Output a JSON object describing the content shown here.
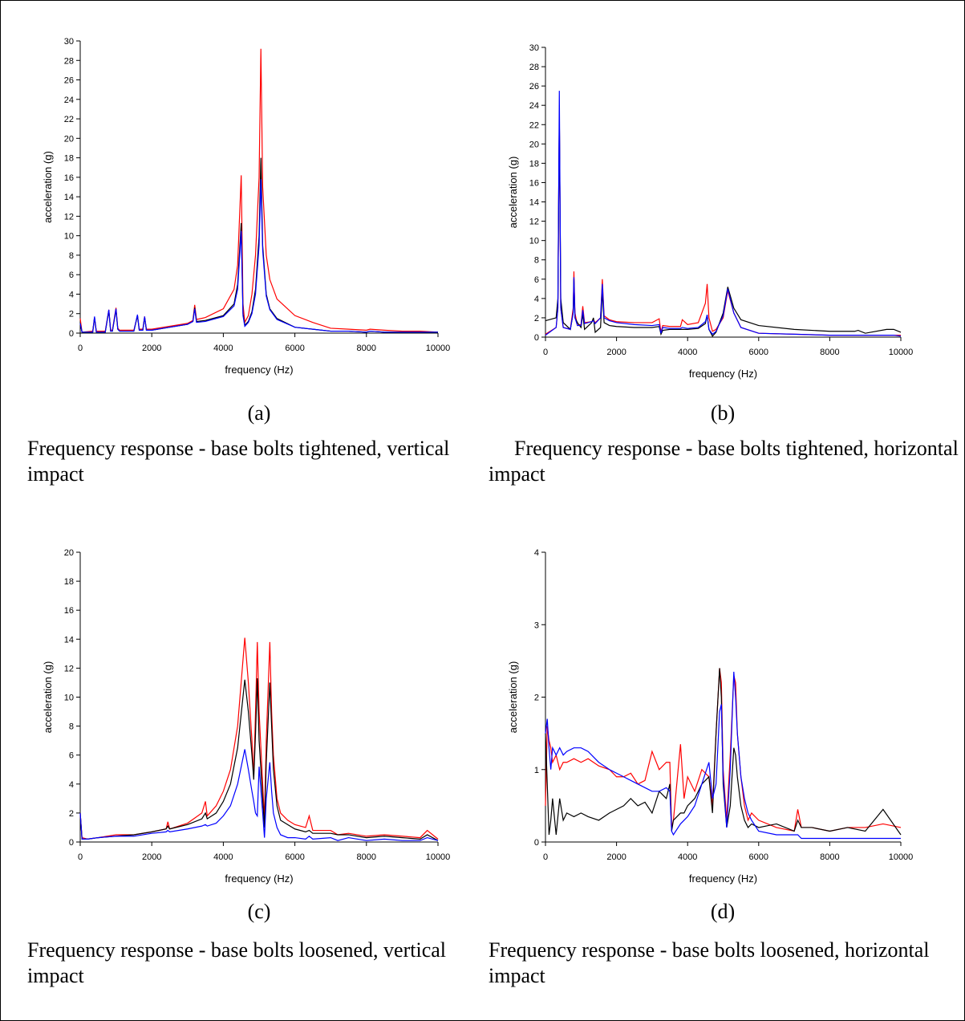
{
  "chart_data": [
    {
      "type": "line",
      "label": "(a)",
      "caption": "Frequency response - base bolts tightened, vertical impact",
      "xlabel": "frequency (Hz)",
      "ylabel": "acceleration (g)",
      "xlim": [
        0,
        10000
      ],
      "xticks": [
        0,
        2000,
        4000,
        6000,
        8000,
        10000
      ],
      "ylim": [
        0,
        30
      ],
      "yticks": [
        0,
        2,
        4,
        6,
        8,
        10,
        12,
        14,
        16,
        18,
        20,
        22,
        24,
        26,
        28,
        30
      ],
      "x": [
        0,
        50,
        350,
        400,
        450,
        700,
        800,
        850,
        900,
        1000,
        1050,
        1100,
        1500,
        1600,
        1650,
        1750,
        1800,
        1850,
        2000,
        2500,
        3000,
        3150,
        3200,
        3250,
        3500,
        4000,
        4300,
        4400,
        4500,
        4550,
        4600,
        4700,
        4800,
        4900,
        5000,
        5050,
        5100,
        5200,
        5300,
        5500,
        6000,
        6500,
        7000,
        7500,
        8000,
        8100,
        8500,
        9000,
        9500,
        10000
      ],
      "series": [
        {
          "color": "#ff0000",
          "values": [
            1.5,
            0.1,
            0.2,
            1.6,
            0.2,
            0.2,
            2.4,
            0.3,
            0.3,
            2.6,
            0.5,
            0.3,
            0.3,
            1.8,
            0.4,
            0.4,
            1.7,
            0.4,
            0.4,
            0.7,
            1.0,
            1.3,
            2.9,
            1.4,
            1.6,
            2.5,
            4.5,
            7,
            16.2,
            3,
            1.1,
            1.8,
            4,
            8,
            16,
            29.2,
            15,
            8,
            5.5,
            3.5,
            1.8,
            1.1,
            0.5,
            0.4,
            0.3,
            0.4,
            0.3,
            0.2,
            0.2,
            0.1
          ]
        },
        {
          "color": "#000000",
          "values": [
            1.0,
            0.1,
            0.1,
            1.6,
            0.1,
            0.1,
            2.3,
            0.2,
            0.2,
            2.4,
            0.4,
            0.2,
            0.2,
            1.8,
            0.3,
            0.3,
            1.6,
            0.3,
            0.3,
            0.6,
            0.9,
            1.2,
            2.6,
            1.2,
            1.3,
            1.8,
            3,
            5,
            11.3,
            2,
            0.8,
            1.2,
            2.2,
            4.5,
            10,
            18,
            9,
            4,
            2.5,
            1.5,
            0.6,
            0.4,
            0.2,
            0.2,
            0.1,
            0.2,
            0.1,
            0.1,
            0.1,
            0.1
          ]
        },
        {
          "color": "#0000ff",
          "values": [
            1.0,
            0.1,
            0.1,
            1.7,
            0.1,
            0.1,
            2.4,
            0.2,
            0.2,
            2.5,
            0.4,
            0.2,
            0.2,
            1.9,
            0.3,
            0.3,
            1.7,
            0.3,
            0.3,
            0.6,
            0.9,
            1.2,
            2.5,
            1.1,
            1.2,
            1.7,
            2.8,
            4.5,
            10.5,
            1.8,
            0.7,
            1.1,
            2,
            4,
            9,
            15.8,
            8.5,
            3.8,
            2.4,
            1.4,
            0.6,
            0.4,
            0.2,
            0.2,
            0.1,
            0.2,
            0.1,
            0.1,
            0.1,
            0.1
          ]
        }
      ]
    },
    {
      "type": "line",
      "label": "(b)",
      "caption": "Frequency response - base bolts tightened, horizontal impact",
      "xlabel": "frequency (Hz)",
      "ylabel": "acceleration (g)",
      "xlim": [
        0,
        10000
      ],
      "xticks": [
        0,
        2000,
        4000,
        6000,
        8000,
        10000
      ],
      "ylim": [
        0,
        30
      ],
      "yticks": [
        0,
        2,
        4,
        6,
        8,
        10,
        12,
        14,
        16,
        18,
        20,
        22,
        24,
        26,
        28,
        30
      ],
      "x": [
        0,
        300,
        350,
        390,
        430,
        500,
        700,
        780,
        800,
        830,
        900,
        1000,
        1050,
        1100,
        1300,
        1350,
        1400,
        1550,
        1600,
        1650,
        1800,
        2000,
        2500,
        3000,
        3200,
        3250,
        3300,
        3500,
        3800,
        3850,
        4000,
        4300,
        4500,
        4550,
        4600,
        4700,
        4800,
        5000,
        5130,
        5300,
        5500,
        6000,
        7000,
        8000,
        8700,
        8800,
        9000,
        9600,
        9800,
        10000
      ],
      "series": [
        {
          "color": "#ff0000",
          "values": [
            0.3,
            1,
            3,
            23,
            3,
            1,
            0.8,
            3,
            6.8,
            2.5,
            1.2,
            1.3,
            3.2,
            1.5,
            1.6,
            1.8,
            1.5,
            2,
            6,
            2.2,
            1.8,
            1.6,
            1.5,
            1.5,
            1.9,
            0.5,
            1.2,
            1.1,
            1.1,
            1.8,
            1.3,
            1.5,
            3.5,
            5.5,
            2,
            0.6,
            0.8,
            2,
            4.8,
            2.5,
            1,
            0.4,
            0.3,
            0.2,
            0.2,
            0.2,
            0.2,
            0.2,
            0.2,
            0.2
          ]
        },
        {
          "color": "#000000",
          "values": [
            1.7,
            2,
            4,
            23,
            4,
            1.5,
            0.8,
            2.5,
            6,
            2,
            1.5,
            1,
            2.4,
            0.8,
            1.5,
            2,
            0.5,
            1,
            4.8,
            1.5,
            1.2,
            1.1,
            1,
            1,
            1.1,
            0.3,
            0.7,
            0.8,
            0.8,
            0.8,
            0.8,
            0.9,
            1.4,
            2.3,
            0.8,
            0.1,
            0.5,
            2.5,
            5.2,
            3,
            1.8,
            1.2,
            0.8,
            0.6,
            0.6,
            0.7,
            0.4,
            0.8,
            0.8,
            0.5
          ]
        },
        {
          "color": "#0000ff",
          "values": [
            0.2,
            1,
            3,
            25.5,
            3,
            1,
            0.8,
            2.5,
            6.2,
            2,
            1.2,
            1.2,
            2.8,
            1.4,
            1.6,
            1.7,
            1.4,
            2,
            5.5,
            2,
            1.7,
            1.5,
            1.3,
            1.2,
            1.3,
            0.4,
            1,
            0.9,
            0.9,
            1,
            0.9,
            1,
            1.6,
            2.3,
            0.8,
            0.3,
            0.6,
            2.2,
            5,
            2.5,
            1,
            0.4,
            0.3,
            0.2,
            0.2,
            0.2,
            0.2,
            0.2,
            0.2,
            0.1
          ]
        }
      ]
    },
    {
      "type": "line",
      "label": "(c)",
      "caption": "Frequency response - base bolts loosened, vertical impact",
      "xlabel": "frequency (Hz)",
      "ylabel": "acceleration (g)",
      "xlim": [
        0,
        10000
      ],
      "xticks": [
        0,
        2000,
        4000,
        6000,
        8000,
        10000
      ],
      "ylim": [
        0,
        20
      ],
      "yticks": [
        0,
        2,
        4,
        6,
        8,
        10,
        12,
        14,
        16,
        18,
        20
      ],
      "x": [
        0,
        50,
        200,
        500,
        1000,
        1500,
        2000,
        2400,
        2450,
        2500,
        3000,
        3400,
        3500,
        3550,
        3800,
        4000,
        4200,
        4400,
        4600,
        4700,
        4800,
        4850,
        4900,
        4950,
        5000,
        5100,
        5150,
        5200,
        5300,
        5350,
        5400,
        5500,
        5600,
        5800,
        6000,
        6300,
        6400,
        6500,
        7000,
        7200,
        7500,
        8000,
        8500,
        9000,
        9500,
        9700,
        10000
      ],
      "series": [
        {
          "color": "#ff0000",
          "values": [
            2,
            0.3,
            0.2,
            0.3,
            0.5,
            0.5,
            0.7,
            0.9,
            1.4,
            0.9,
            1.3,
            2,
            2.8,
            1.8,
            2.5,
            3.5,
            5,
            8,
            14.1,
            11,
            7,
            4.5,
            9,
            13.8,
            9,
            4,
            1.5,
            7,
            13.8,
            9,
            6,
            3,
            2,
            1.5,
            1.2,
            1,
            1.8,
            0.8,
            0.8,
            0.5,
            0.6,
            0.4,
            0.5,
            0.4,
            0.3,
            0.8,
            0.2
          ]
        },
        {
          "color": "#000000",
          "values": [
            2,
            0.2,
            0.2,
            0.3,
            0.4,
            0.5,
            0.7,
            0.9,
            1.1,
            0.9,
            1.2,
            1.6,
            2.0,
            1.6,
            2,
            2.8,
            4,
            6.5,
            11.2,
            9,
            6,
            4.3,
            7.5,
            11.3,
            7,
            3,
            1,
            5.5,
            11,
            8,
            5,
            2.5,
            1.5,
            1.2,
            0.9,
            0.7,
            0.8,
            0.6,
            0.6,
            0.5,
            0.5,
            0.3,
            0.4,
            0.3,
            0.2,
            0.5,
            0.1
          ]
        },
        {
          "color": "#0000ff",
          "values": [
            2,
            0.2,
            0.2,
            0.3,
            0.4,
            0.4,
            0.6,
            0.7,
            0.8,
            0.7,
            0.9,
            1.1,
            1.2,
            1.1,
            1.3,
            1.8,
            2.5,
            4,
            6.4,
            5,
            3.5,
            2.8,
            2,
            1.8,
            5.2,
            2,
            0.3,
            3,
            5.5,
            3.5,
            2,
            1,
            0.5,
            0.3,
            0.3,
            0.2,
            0.4,
            0.2,
            0.3,
            0.1,
            0.3,
            0.1,
            0.2,
            0.1,
            0.1,
            0.3,
            0.1
          ]
        }
      ]
    },
    {
      "type": "line",
      "label": "(d)",
      "caption": "Frequency response - base bolts loosened, horizontal impact",
      "xlabel": "frequency (Hz)",
      "ylabel": "acceleration (g)",
      "xlim": [
        0,
        10000
      ],
      "xticks": [
        0,
        2000,
        4000,
        6000,
        8000,
        10000
      ],
      "ylim": [
        0,
        4
      ],
      "yticks": [
        0,
        1,
        2,
        3,
        4
      ],
      "x": [
        0,
        50,
        100,
        150,
        200,
        300,
        400,
        500,
        600,
        800,
        1000,
        1200,
        1500,
        1800,
        2000,
        2200,
        2400,
        2600,
        2800,
        3000,
        3200,
        3400,
        3500,
        3550,
        3600,
        3800,
        3900,
        4000,
        4200,
        4400,
        4600,
        4700,
        4800,
        4900,
        4950,
        5000,
        5100,
        5200,
        5300,
        5350,
        5400,
        5500,
        5600,
        5700,
        5800,
        6000,
        6500,
        7000,
        7100,
        7200,
        7500,
        8000,
        8500,
        9000,
        9500,
        10000
      ],
      "series": [
        {
          "color": "#ff0000",
          "values": [
            0.5,
            1.6,
            1.4,
            1.3,
            1.1,
            1.2,
            1.0,
            1.1,
            1.1,
            1.15,
            1.1,
            1.15,
            1.05,
            1.0,
            0.9,
            0.9,
            0.95,
            0.8,
            0.85,
            1.25,
            1.0,
            1.1,
            1.1,
            0.2,
            0.3,
            1.35,
            0.6,
            0.9,
            0.7,
            1.0,
            0.9,
            0.5,
            1.5,
            2.4,
            2.2,
            1.0,
            0.3,
            1.2,
            2.3,
            2.2,
            1.5,
            0.9,
            0.5,
            0.3,
            0.4,
            0.3,
            0.2,
            0.15,
            0.45,
            0.2,
            0.2,
            0.15,
            0.2,
            0.2,
            0.25,
            0.2
          ]
        },
        {
          "color": "#000000",
          "values": [
            1.5,
            0.8,
            0.1,
            0.3,
            0.6,
            0.1,
            0.6,
            0.3,
            0.4,
            0.35,
            0.4,
            0.35,
            0.3,
            0.4,
            0.45,
            0.5,
            0.6,
            0.5,
            0.55,
            0.4,
            0.7,
            0.6,
            0.8,
            0.15,
            0.3,
            0.4,
            0.4,
            0.5,
            0.6,
            0.8,
            0.9,
            0.4,
            1.5,
            2.4,
            2.0,
            0.8,
            0.2,
            0.5,
            1.3,
            1.2,
            0.9,
            0.5,
            0.3,
            0.2,
            0.25,
            0.2,
            0.25,
            0.15,
            0.3,
            0.2,
            0.2,
            0.15,
            0.2,
            0.15,
            0.45,
            0.1
          ]
        },
        {
          "color": "#0000ff",
          "values": [
            1.5,
            1.7,
            1.3,
            1.0,
            1.3,
            1.2,
            1.3,
            1.2,
            1.25,
            1.3,
            1.3,
            1.25,
            1.1,
            1.0,
            0.95,
            0.9,
            0.85,
            0.8,
            0.75,
            0.7,
            0.7,
            0.75,
            0.7,
            0.15,
            0.1,
            0.25,
            0.3,
            0.35,
            0.5,
            0.8,
            1.1,
            0.6,
            0.8,
            1.8,
            1.9,
            0.9,
            0.2,
            1.0,
            2.35,
            2.0,
            1.5,
            0.9,
            0.6,
            0.4,
            0.3,
            0.15,
            0.1,
            0.1,
            0.1,
            0.05,
            0.05,
            0.05,
            0.05,
            0.05,
            0.05,
            0.05
          ]
        }
      ]
    }
  ]
}
